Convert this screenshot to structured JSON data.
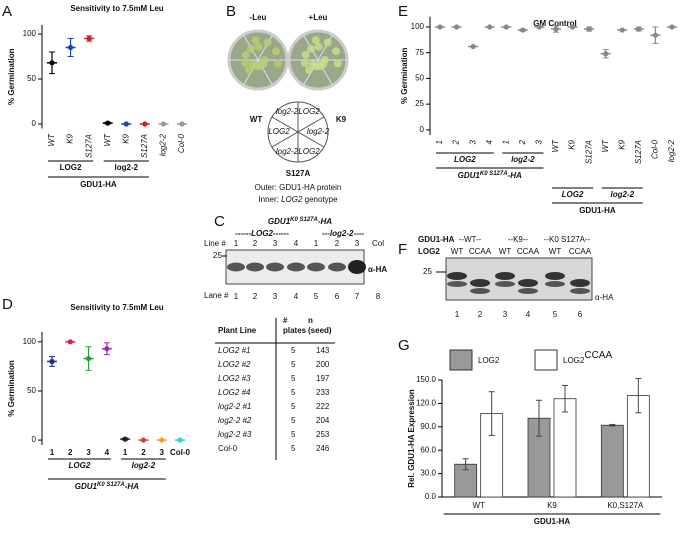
{
  "chart_data": [
    {
      "type": "dot",
      "title": "Sensitivity to 7.5mM Leu",
      "y_label": "% Germination",
      "categories": [
        "WT",
        "K9",
        "S127A",
        "WT",
        "K9",
        "S127A",
        "log2-2",
        "Col-0"
      ],
      "values": [
        68,
        85,
        95,
        1,
        0,
        0,
        0,
        0
      ],
      "errors": [
        12,
        10,
        3,
        1,
        0,
        0,
        0,
        0
      ],
      "colors": [
        "#000000",
        "#1f3fbf",
        "#d02020",
        "#000000",
        "#1f3fbf",
        "#d02020",
        "#999999",
        "#999999"
      ],
      "ylim": [
        -5,
        110
      ],
      "yticks": [
        0,
        50,
        100
      ],
      "group_labels": [
        "LOG2",
        "log2-2"
      ],
      "construct_labels": [
        "GDU1-HA"
      ]
    },
    {
      "type": "dot",
      "title": "Sensitivity to 7.5mM Leu",
      "y_label": "% Germination",
      "categories": [
        "1",
        "2",
        "3",
        "4",
        "1",
        "2",
        "3",
        "Col-0"
      ],
      "values": [
        80,
        100,
        83,
        93,
        1,
        0,
        0,
        0
      ],
      "errors": [
        5,
        0,
        12,
        6,
        1,
        0,
        0,
        0
      ],
      "colors": [
        "#1f2f8f",
        "#e02040",
        "#20a040",
        "#9030b0",
        "#222222",
        "#d04040",
        "#f0a020",
        "#30d0e0"
      ],
      "ylim": [
        -5,
        110
      ],
      "yticks": [
        0,
        50,
        100
      ],
      "group_labels": [
        "LOG2",
        "log2-2"
      ],
      "construct_labels": [
        {
          "base": "GDU1",
          "sup": "K0 S127A",
          "suffix": "-HA"
        }
      ]
    },
    {
      "type": "dot",
      "title": "GM Control",
      "y_label": "% Germination",
      "categories": [
        "1",
        "2",
        "3",
        "4",
        "1",
        "2",
        "3",
        "WT",
        "K9",
        "S127A",
        "WT",
        "K9",
        "S127A",
        "Col-0",
        "log2-2"
      ],
      "values": [
        100,
        100,
        81,
        100,
        100,
        97,
        100,
        98,
        100,
        98,
        74,
        97,
        98,
        92,
        100
      ],
      "errors": [
        0,
        0,
        0,
        0,
        0,
        1,
        0,
        3,
        0,
        2,
        4,
        0,
        2,
        8,
        0
      ],
      "colors": [
        "#888888",
        "#888888",
        "#888888",
        "#888888",
        "#888888",
        "#888888",
        "#888888",
        "#888888",
        "#888888",
        "#888888",
        "#888888",
        "#888888",
        "#888888",
        "#888888",
        "#888888"
      ],
      "ylim": [
        -5,
        110
      ],
      "yticks": [
        0,
        25,
        50,
        75,
        100
      ],
      "group_labels": [
        "LOG2",
        "log2-2",
        "LOG2",
        "log2-2"
      ],
      "construct_labels": [
        {
          "base": "GDU1",
          "sup": "K0 S127A",
          "suffix": "-HA"
        },
        "GDU1-HA"
      ]
    },
    {
      "type": "bar",
      "y_label": "Rel. GDU1-HA Expression",
      "categories": [
        "WT",
        "K9",
        "K0,S127A"
      ],
      "series": [
        {
          "name": "LOG2",
          "color": "#999999",
          "values": [
            42,
            101,
            92
          ],
          "errors": [
            7,
            23,
            1
          ]
        },
        {
          "name": "LOG2",
          "superscript": "CCAA",
          "color": "#ffffff",
          "values": [
            107,
            126,
            130
          ],
          "errors": [
            28,
            17,
            22
          ]
        }
      ],
      "ylim": [
        0,
        150
      ],
      "yticks": [
        {
          "value": 0,
          "label": "0.0"
        },
        {
          "value": 30,
          "label": "30.0"
        },
        {
          "value": 60,
          "label": "60.0"
        },
        {
          "value": 90,
          "label": "90.0"
        },
        {
          "value": 120,
          "label": "120.0"
        },
        {
          "value": 150,
          "label": "150.0"
        }
      ],
      "construct_labels": [
        "GDU1-HA"
      ]
    }
  ],
  "panel_labels": [
    "A",
    "B",
    "C",
    "D",
    "E",
    "F",
    "G"
  ],
  "plates": {
    "conditions": [
      "-Leu",
      "+Leu"
    ],
    "sectors": [
      "WT",
      "K9",
      "S127A"
    ],
    "inner": [
      "log2-2",
      "LOG2",
      "LOG2",
      "log2-2",
      "log2-2",
      "LOG2"
    ],
    "legend_outer": "Outer: GDU1-HA protein",
    "legend_inner": [
      "Inner: ",
      "LOG2",
      " genotype"
    ]
  },
  "blot_c": {
    "construct": {
      "base": "GDU1",
      "sup": "K0 S127A",
      "suffix": "-HA"
    },
    "genotype_labels": [
      "------LOG2------",
      "---log2-2----"
    ],
    "line_heading": "Line #",
    "lines": [
      "1",
      "2",
      "3",
      "4",
      "1",
      "2",
      "3",
      "Col"
    ],
    "marker": "25",
    "antibody": "α-HA",
    "lane_heading": "Lane #",
    "lanes": [
      "1",
      "2",
      "3",
      "4",
      "5",
      "6",
      "7",
      "8"
    ]
  },
  "blot_f": {
    "heading": "GDU1-HA",
    "groups": [
      "--WT--",
      "--K9--",
      "--K0 S127A--"
    ],
    "row_heading": "LOG2",
    "genotypes": [
      "WT",
      "CCAA",
      "WT",
      "CCAA",
      "WT",
      "CCAA"
    ],
    "marker": "25",
    "antibody": "α-HA",
    "lanes": [
      "1",
      "2",
      "3",
      "4",
      "5",
      "6"
    ]
  },
  "table_d": {
    "columns": [
      [
        "Plant Line"
      ],
      [
        "#",
        "plates"
      ],
      [
        "n",
        "(seed)"
      ]
    ],
    "rows": [
      [
        "LOG2 #1",
        "5",
        "143"
      ],
      [
        "LOG2 #2",
        "5",
        "200"
      ],
      [
        "LOG2 #3",
        "5",
        "197"
      ],
      [
        "LOG2 #4",
        "5",
        "233"
      ],
      [
        "log2-2 #1",
        "5",
        "222"
      ],
      [
        "log2-2 #2",
        "5",
        "204"
      ],
      [
        "log2-2 #3",
        "5",
        "253"
      ],
      [
        "Col-0",
        "5",
        "246"
      ]
    ]
  }
}
